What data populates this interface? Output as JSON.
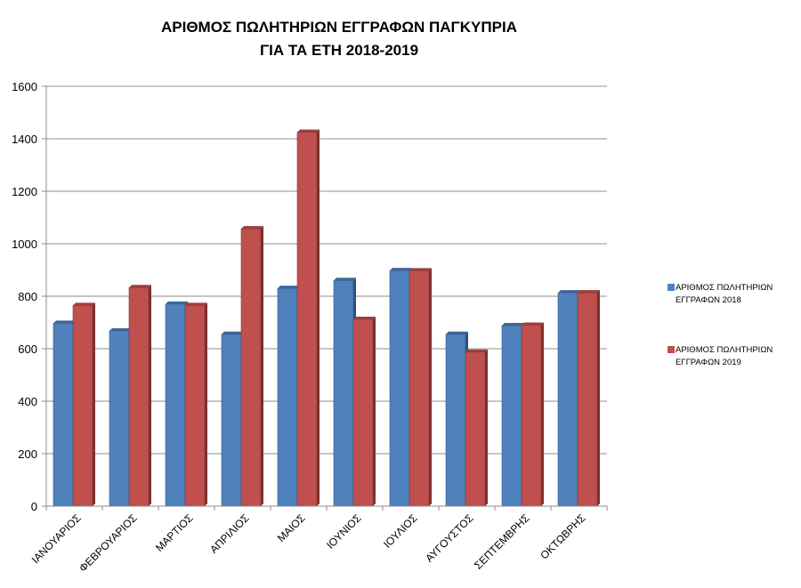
{
  "chart_data": {
    "type": "bar",
    "title": [
      "ΑΡΙΘΜΟΣ ΠΩΛΗΤΗΡΙΩΝ ΕΓΓΡΑΦΩΝ ΠΑΓΚΥΠΡΙΑ",
      "ΓΙΑ ΤΑ ΕΤΗ 2018-2019"
    ],
    "xlabel": "",
    "ylabel": "",
    "ylim": [
      0,
      1600
    ],
    "yticks": [
      0,
      200,
      400,
      600,
      800,
      1000,
      1200,
      1400,
      1600
    ],
    "grid": true,
    "legend_position": "right",
    "categories": [
      "ΙΑΝΟΥΑΡΙΟΣ",
      "ΦΕΒΡΟΥΑΡΙΟΣ",
      "ΜΑΡΤΙΟΣ",
      "ΑΠΡΙΛΙΟΣ",
      "ΜΑΙΟΣ",
      "ΙΟΥΝΙΟΣ",
      "ΙΟΥΛΙΟΣ",
      "ΑΥΓΟΥΣΤΟΣ",
      "ΣΕΠΤΕΜΒΡΗΣ",
      "ΟΚΤΩΒΡΗΣ"
    ],
    "series": [
      {
        "name": [
          "ΑΡΙΘΜΟΣ ΠΩΛΗΤΗΡΙΩΝ",
          "ΕΓΓΡΑΦΩΝ 2018"
        ],
        "color": "#4f81bd",
        "values": [
          697,
          668,
          770,
          655,
          830,
          860,
          898,
          655,
          688,
          813
        ]
      },
      {
        "name": [
          "ΑΡΙΘΜΟΣ ΠΩΛΗΤΗΡΙΩΝ",
          "ΕΓΓΡΑΦΩΝ 2019"
        ],
        "color": "#c0504d",
        "values": [
          765,
          833,
          765,
          1057,
          1425,
          712,
          897,
          587,
          690,
          813
        ]
      }
    ]
  }
}
